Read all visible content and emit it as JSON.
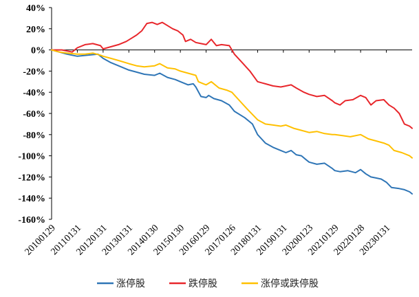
{
  "chart_data": {
    "type": "line",
    "title": "",
    "xlabel": "",
    "ylabel": "",
    "ylim": [
      -160,
      40
    ],
    "y_tick_labels": [
      "40%",
      "20%",
      "0%",
      "-20%",
      "-40%",
      "-60%",
      "-80%",
      "-100%",
      "-120%",
      "-140%",
      "-160%"
    ],
    "x_tick_labels": [
      "20100129",
      "20110131",
      "20120131",
      "20130131",
      "20140130",
      "20150130",
      "20160129",
      "20170126",
      "20180131",
      "20190131",
      "20200123",
      "20210129",
      "20220128",
      "20230131"
    ],
    "grid": false,
    "legend_position": "bottom",
    "colors": {
      "涨停股": "#2E75B6",
      "跌停股": "#E8262B",
      "涨停或跌停股": "#FFC000",
      "axis": "#000000"
    },
    "series": [
      {
        "name": "涨停股",
        "points": [
          [
            2010.0,
            0
          ],
          [
            2010.3,
            -2
          ],
          [
            2010.6,
            -4
          ],
          [
            2011.0,
            -6
          ],
          [
            2011.4,
            -5
          ],
          [
            2011.8,
            -4
          ],
          [
            2012.0,
            -8
          ],
          [
            2012.3,
            -12
          ],
          [
            2012.6,
            -15
          ],
          [
            2013.0,
            -19
          ],
          [
            2013.3,
            -21
          ],
          [
            2013.6,
            -23
          ],
          [
            2014.0,
            -24
          ],
          [
            2014.2,
            -22
          ],
          [
            2014.5,
            -26
          ],
          [
            2014.8,
            -28
          ],
          [
            2015.0,
            -30
          ],
          [
            2015.3,
            -33
          ],
          [
            2015.5,
            -32
          ],
          [
            2015.6,
            -35
          ],
          [
            2015.8,
            -44
          ],
          [
            2016.0,
            -45
          ],
          [
            2016.1,
            -43
          ],
          [
            2016.3,
            -46
          ],
          [
            2016.6,
            -48
          ],
          [
            2016.9,
            -52
          ],
          [
            2017.1,
            -58
          ],
          [
            2017.5,
            -64
          ],
          [
            2017.8,
            -70
          ],
          [
            2018.0,
            -80
          ],
          [
            2018.3,
            -88
          ],
          [
            2018.6,
            -92
          ],
          [
            2018.9,
            -95
          ],
          [
            2019.1,
            -97
          ],
          [
            2019.3,
            -95
          ],
          [
            2019.5,
            -99
          ],
          [
            2019.7,
            -100
          ],
          [
            2019.9,
            -104
          ],
          [
            2020.0,
            -106
          ],
          [
            2020.3,
            -108
          ],
          [
            2020.6,
            -107
          ],
          [
            2020.9,
            -112
          ],
          [
            2021.0,
            -114
          ],
          [
            2021.2,
            -115
          ],
          [
            2021.5,
            -114
          ],
          [
            2021.8,
            -116
          ],
          [
            2022.0,
            -113
          ],
          [
            2022.2,
            -117
          ],
          [
            2022.4,
            -120
          ],
          [
            2022.6,
            -121
          ],
          [
            2022.8,
            -122
          ],
          [
            2023.0,
            -125
          ],
          [
            2023.2,
            -130
          ],
          [
            2023.5,
            -131
          ],
          [
            2023.7,
            -132
          ],
          [
            2023.9,
            -134
          ],
          [
            2024.0,
            -136
          ]
        ]
      },
      {
        "name": "跌停股",
        "points": [
          [
            2010.0,
            0
          ],
          [
            2010.4,
            0
          ],
          [
            2010.8,
            -2
          ],
          [
            2011.0,
            2
          ],
          [
            2011.3,
            5
          ],
          [
            2011.6,
            6
          ],
          [
            2011.9,
            4
          ],
          [
            2012.0,
            1
          ],
          [
            2012.3,
            3
          ],
          [
            2012.6,
            5
          ],
          [
            2012.9,
            8
          ],
          [
            2013.1,
            11
          ],
          [
            2013.3,
            14
          ],
          [
            2013.5,
            18
          ],
          [
            2013.7,
            25
          ],
          [
            2013.9,
            26
          ],
          [
            2014.1,
            24
          ],
          [
            2014.3,
            26
          ],
          [
            2014.5,
            23
          ],
          [
            2014.7,
            20
          ],
          [
            2014.9,
            18
          ],
          [
            2015.1,
            14
          ],
          [
            2015.2,
            8
          ],
          [
            2015.4,
            10
          ],
          [
            2015.6,
            7
          ],
          [
            2015.8,
            6
          ],
          [
            2016.0,
            5
          ],
          [
            2016.2,
            10
          ],
          [
            2016.4,
            4
          ],
          [
            2016.6,
            5
          ],
          [
            2016.9,
            4
          ],
          [
            2017.1,
            -4
          ],
          [
            2017.4,
            -12
          ],
          [
            2017.7,
            -20
          ],
          [
            2018.0,
            -30
          ],
          [
            2018.3,
            -32
          ],
          [
            2018.6,
            -34
          ],
          [
            2018.9,
            -35
          ],
          [
            2019.1,
            -34
          ],
          [
            2019.3,
            -33
          ],
          [
            2019.5,
            -36
          ],
          [
            2019.8,
            -40
          ],
          [
            2020.0,
            -42
          ],
          [
            2020.3,
            -44
          ],
          [
            2020.6,
            -43
          ],
          [
            2020.9,
            -48
          ],
          [
            2021.0,
            -50
          ],
          [
            2021.2,
            -52
          ],
          [
            2021.4,
            -48
          ],
          [
            2021.7,
            -47
          ],
          [
            2022.0,
            -43
          ],
          [
            2022.2,
            -45
          ],
          [
            2022.4,
            -52
          ],
          [
            2022.6,
            -48
          ],
          [
            2022.9,
            -47
          ],
          [
            2023.1,
            -52
          ],
          [
            2023.3,
            -55
          ],
          [
            2023.5,
            -60
          ],
          [
            2023.7,
            -70
          ],
          [
            2023.9,
            -72
          ],
          [
            2024.0,
            -74
          ]
        ]
      },
      {
        "name": "涨停或跌停股",
        "points": [
          [
            2010.0,
            0
          ],
          [
            2010.3,
            -2
          ],
          [
            2010.6,
            -3
          ],
          [
            2011.0,
            -4
          ],
          [
            2011.3,
            -4
          ],
          [
            2011.6,
            -3
          ],
          [
            2011.9,
            -5
          ],
          [
            2012.0,
            -6
          ],
          [
            2012.3,
            -8
          ],
          [
            2012.6,
            -10
          ],
          [
            2013.0,
            -13
          ],
          [
            2013.3,
            -15
          ],
          [
            2013.6,
            -16
          ],
          [
            2014.0,
            -15
          ],
          [
            2014.2,
            -13
          ],
          [
            2014.5,
            -17
          ],
          [
            2014.8,
            -18
          ],
          [
            2015.0,
            -20
          ],
          [
            2015.3,
            -22
          ],
          [
            2015.6,
            -24
          ],
          [
            2015.7,
            -30
          ],
          [
            2015.9,
            -32
          ],
          [
            2016.0,
            -33
          ],
          [
            2016.2,
            -30
          ],
          [
            2016.5,
            -36
          ],
          [
            2016.8,
            -38
          ],
          [
            2017.0,
            -40
          ],
          [
            2017.3,
            -48
          ],
          [
            2017.6,
            -56
          ],
          [
            2018.0,
            -66
          ],
          [
            2018.3,
            -70
          ],
          [
            2018.6,
            -71
          ],
          [
            2018.9,
            -72
          ],
          [
            2019.1,
            -71
          ],
          [
            2019.4,
            -74
          ],
          [
            2019.7,
            -76
          ],
          [
            2020.0,
            -78
          ],
          [
            2020.3,
            -77
          ],
          [
            2020.6,
            -79
          ],
          [
            2020.9,
            -80
          ],
          [
            2021.0,
            -80
          ],
          [
            2021.3,
            -81
          ],
          [
            2021.6,
            -82
          ],
          [
            2022.0,
            -80
          ],
          [
            2022.3,
            -84
          ],
          [
            2022.6,
            -86
          ],
          [
            2022.9,
            -88
          ],
          [
            2023.1,
            -90
          ],
          [
            2023.3,
            -95
          ],
          [
            2023.6,
            -97
          ],
          [
            2023.9,
            -100
          ],
          [
            2024.0,
            -102
          ]
        ]
      }
    ]
  }
}
